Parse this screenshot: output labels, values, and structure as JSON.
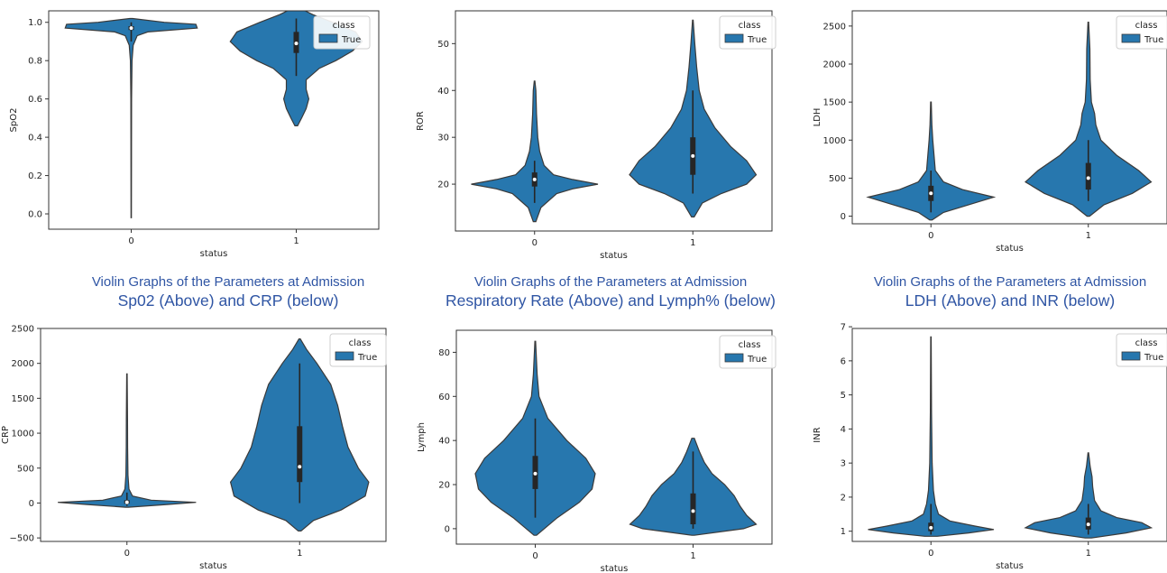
{
  "colors": {
    "violin": "#2777ae",
    "box": "#262626",
    "median": "#ffffff",
    "caption": "#2f55a4"
  },
  "captions": [
    {
      "line1": "Violin Graphs of the Parameters at Admission",
      "line2": "Sp02 (Above) and CRP (below)"
    },
    {
      "line1": "Violin Graphs of the Parameters at Admission",
      "line2": "Respiratory Rate (Above) and Lymph% (below)"
    },
    {
      "line1": "Violin Graphs of the Parameters at Admission",
      "line2": "LDH (Above) and INR (below)"
    }
  ],
  "chart_data": [
    {
      "type": "violin",
      "xlabel": "status",
      "ylabel": "SpO2",
      "categories": [
        "0",
        "1"
      ],
      "ylim": [
        -0.08,
        1.06
      ],
      "yticks": [
        "0.0",
        "0.2",
        "0.4",
        "0.6",
        "0.8",
        "1.0"
      ],
      "legend": {
        "title": "class",
        "entries": [
          "True"
        ],
        "placement": "top-right"
      },
      "series": [
        {
          "name": "True",
          "violins": [
            {
              "category": "0",
              "min": -0.02,
              "max": 1.02,
              "median": 0.97,
              "q1": 0.96,
              "q3": 0.98,
              "whisker_low": 0.9,
              "whisker_high": 1.0,
              "profile": [
                [
                  -0.02,
                  0.003
                ],
                [
                  0.3,
                  0.004
                ],
                [
                  0.6,
                  0.006
                ],
                [
                  0.8,
                  0.012
                ],
                [
                  0.88,
                  0.03
                ],
                [
                  0.93,
                  0.09
                ],
                [
                  0.95,
                  0.25
                ],
                [
                  0.97,
                  1.0
                ],
                [
                  0.99,
                  0.98
                ],
                [
                  1.0,
                  0.5
                ],
                [
                  1.02,
                  0.02
                ]
              ]
            },
            {
              "category": "1",
              "min": 0.46,
              "max": 1.08,
              "median": 0.89,
              "q1": 0.84,
              "q3": 0.95,
              "whisker_low": 0.72,
              "whisker_high": 1.02,
              "profile": [
                [
                  0.46,
                  0.02
                ],
                [
                  0.5,
                  0.08
                ],
                [
                  0.55,
                  0.15
                ],
                [
                  0.6,
                  0.19
                ],
                [
                  0.65,
                  0.15
                ],
                [
                  0.7,
                  0.15
                ],
                [
                  0.76,
                  0.35
                ],
                [
                  0.8,
                  0.6
                ],
                [
                  0.85,
                  0.85
                ],
                [
                  0.9,
                  1.0
                ],
                [
                  0.95,
                  0.9
                ],
                [
                  1.0,
                  0.55
                ],
                [
                  1.04,
                  0.25
                ],
                [
                  1.08,
                  0.02
                ]
              ]
            }
          ]
        }
      ]
    },
    {
      "type": "violin",
      "xlabel": "status",
      "ylabel": "ROR",
      "categories": [
        "0",
        "1"
      ],
      "ylim": [
        10,
        57
      ],
      "yticks": [
        "20",
        "30",
        "40",
        "50"
      ],
      "legend": {
        "title": "class",
        "entries": [
          "True"
        ],
        "placement": "top-right"
      },
      "series": [
        {
          "name": "True",
          "violins": [
            {
              "category": "0",
              "min": 12,
              "max": 42,
              "median": 21,
              "q1": 19.5,
              "q3": 22.5,
              "whisker_low": 16,
              "whisker_high": 25,
              "profile": [
                [
                  12,
                  0.02
                ],
                [
                  15,
                  0.1
                ],
                [
                  18,
                  0.35
                ],
                [
                  19,
                  0.6
                ],
                [
                  20,
                  1.0
                ],
                [
                  21,
                  0.6
                ],
                [
                  22,
                  0.3
                ],
                [
                  24,
                  0.15
                ],
                [
                  27,
                  0.08
                ],
                [
                  30,
                  0.05
                ],
                [
                  35,
                  0.03
                ],
                [
                  40,
                  0.02
                ],
                [
                  42,
                  0.005
                ]
              ]
            },
            {
              "category": "1",
              "min": 13,
              "max": 55,
              "median": 26,
              "q1": 22,
              "q3": 30,
              "whisker_low": 18,
              "whisker_high": 40,
              "profile": [
                [
                  13,
                  0.02
                ],
                [
                  16,
                  0.15
                ],
                [
                  18,
                  0.45
                ],
                [
                  20,
                  0.85
                ],
                [
                  22,
                  1.0
                ],
                [
                  25,
                  0.85
                ],
                [
                  28,
                  0.6
                ],
                [
                  32,
                  0.35
                ],
                [
                  36,
                  0.18
                ],
                [
                  40,
                  0.1
                ],
                [
                  45,
                  0.06
                ],
                [
                  50,
                  0.03
                ],
                [
                  55,
                  0.005
                ]
              ]
            }
          ]
        }
      ]
    },
    {
      "type": "violin",
      "xlabel": "status",
      "ylabel": "LDH",
      "categories": [
        "0",
        "1"
      ],
      "ylim": [
        -100,
        2700
      ],
      "yticks": [
        "0",
        "500",
        "1000",
        "1500",
        "2000",
        "2500"
      ],
      "legend": {
        "title": "class",
        "entries": [
          "True"
        ],
        "placement": "top-right"
      },
      "series": [
        {
          "name": "True",
          "violins": [
            {
              "category": "0",
              "min": -50,
              "max": 1500,
              "median": 300,
              "q1": 200,
              "q3": 400,
              "whisker_low": 50,
              "whisker_high": 600,
              "profile": [
                [
                  -50,
                  0.02
                ],
                [
                  50,
                  0.2
                ],
                [
                  150,
                  0.6
                ],
                [
                  250,
                  1.0
                ],
                [
                  350,
                  0.5
                ],
                [
                  450,
                  0.2
                ],
                [
                  600,
                  0.07
                ],
                [
                  800,
                  0.05
                ],
                [
                  1000,
                  0.03
                ],
                [
                  1200,
                  0.015
                ],
                [
                  1500,
                  0.005
                ]
              ]
            },
            {
              "category": "1",
              "min": 0,
              "max": 2550,
              "median": 500,
              "q1": 350,
              "q3": 700,
              "whisker_low": 200,
              "whisker_high": 1000,
              "profile": [
                [
                  0,
                  0.02
                ],
                [
                  150,
                  0.25
                ],
                [
                  300,
                  0.7
                ],
                [
                  450,
                  1.0
                ],
                [
                  600,
                  0.8
                ],
                [
                  800,
                  0.45
                ],
                [
                  1000,
                  0.2
                ],
                [
                  1200,
                  0.12
                ],
                [
                  1350,
                  0.1
                ],
                [
                  1500,
                  0.05
                ],
                [
                  1800,
                  0.03
                ],
                [
                  2200,
                  0.025
                ],
                [
                  2550,
                  0.005
                ]
              ]
            }
          ]
        }
      ]
    },
    {
      "type": "violin",
      "xlabel": "status",
      "ylabel": "CRP",
      "categories": [
        "0",
        "1"
      ],
      "ylim": [
        -550,
        2500
      ],
      "yticks": [
        "−500",
        "0",
        "500",
        "1000",
        "1500",
        "2000",
        "2500"
      ],
      "legend": {
        "title": "class",
        "entries": [
          "True"
        ],
        "placement": "top-right"
      },
      "series": [
        {
          "name": "True",
          "violins": [
            {
              "category": "0",
              "min": -60,
              "max": 1850,
              "median": 10,
              "q1": -10,
              "q3": 40,
              "whisker_low": -40,
              "whisker_high": 150,
              "profile": [
                [
                  -60,
                  0.02
                ],
                [
                  -20,
                  0.6
                ],
                [
                  10,
                  1.0
                ],
                [
                  40,
                  0.35
                ],
                [
                  100,
                  0.08
                ],
                [
                  200,
                  0.03
                ],
                [
                  400,
                  0.015
                ],
                [
                  800,
                  0.01
                ],
                [
                  1200,
                  0.008
                ],
                [
                  1850,
                  0.003
                ]
              ]
            },
            {
              "category": "1",
              "min": -400,
              "max": 2350,
              "median": 520,
              "q1": 300,
              "q3": 1100,
              "whisker_low": 0,
              "whisker_high": 2000,
              "profile": [
                [
                  -400,
                  0.02
                ],
                [
                  -250,
                  0.2
                ],
                [
                  -100,
                  0.6
                ],
                [
                  100,
                  0.95
                ],
                [
                  300,
                  1.0
                ],
                [
                  500,
                  0.85
                ],
                [
                  800,
                  0.7
                ],
                [
                  1100,
                  0.62
                ],
                [
                  1400,
                  0.55
                ],
                [
                  1700,
                  0.45
                ],
                [
                  2000,
                  0.25
                ],
                [
                  2200,
                  0.1
                ],
                [
                  2350,
                  0.01
                ]
              ]
            }
          ]
        }
      ]
    },
    {
      "type": "violin",
      "xlabel": "status",
      "ylabel": "Lymph",
      "categories": [
        "0",
        "1"
      ],
      "ylim": [
        -7,
        90
      ],
      "yticks": [
        "0",
        "20",
        "40",
        "60",
        "80"
      ],
      "legend": {
        "title": "class",
        "entries": [
          "True"
        ],
        "placement": "top-right"
      },
      "series": [
        {
          "name": "True",
          "violins": [
            {
              "category": "0",
              "min": -3,
              "max": 85,
              "median": 25,
              "q1": 18,
              "q3": 33,
              "whisker_low": 5,
              "whisker_high": 50,
              "profile": [
                [
                  -3,
                  0.02
                ],
                [
                  5,
                  0.35
                ],
                [
                  12,
                  0.7
                ],
                [
                  18,
                  0.9
                ],
                [
                  25,
                  0.95
                ],
                [
                  32,
                  0.8
                ],
                [
                  40,
                  0.5
                ],
                [
                  50,
                  0.2
                ],
                [
                  60,
                  0.06
                ],
                [
                  70,
                  0.03
                ],
                [
                  85,
                  0.005
                ]
              ]
            },
            {
              "category": "1",
              "min": -3,
              "max": 41,
              "median": 8,
              "q1": 2,
              "q3": 16,
              "whisker_low": 0,
              "whisker_high": 35,
              "profile": [
                [
                  -3,
                  0.02
                ],
                [
                  0,
                  0.8
                ],
                [
                  2,
                  1.0
                ],
                [
                  6,
                  0.85
                ],
                [
                  10,
                  0.75
                ],
                [
                  15,
                  0.65
                ],
                [
                  20,
                  0.5
                ],
                [
                  25,
                  0.3
                ],
                [
                  30,
                  0.18
                ],
                [
                  35,
                  0.1
                ],
                [
                  41,
                  0.02
                ]
              ]
            }
          ]
        }
      ]
    },
    {
      "type": "violin",
      "xlabel": "status",
      "ylabel": "INR",
      "categories": [
        "0",
        "1"
      ],
      "ylim": [
        0.7,
        6.95
      ],
      "yticks": [
        "1",
        "2",
        "3",
        "4",
        "5",
        "6",
        "7"
      ],
      "legend": {
        "title": "class",
        "entries": [
          "True"
        ],
        "placement": "top-right"
      },
      "series": [
        {
          "name": "True",
          "violins": [
            {
              "category": "0",
              "min": 0.85,
              "max": 6.7,
              "median": 1.1,
              "q1": 1.0,
              "q3": 1.25,
              "whisker_low": 0.9,
              "whisker_high": 1.8,
              "profile": [
                [
                  0.85,
                  0.1
                ],
                [
                  0.95,
                  0.6
                ],
                [
                  1.05,
                  1.0
                ],
                [
                  1.15,
                  0.7
                ],
                [
                  1.3,
                  0.3
                ],
                [
                  1.5,
                  0.12
                ],
                [
                  1.8,
                  0.07
                ],
                [
                  2.2,
                  0.04
                ],
                [
                  3.0,
                  0.02
                ],
                [
                  4.5,
                  0.01
                ],
                [
                  6.7,
                  0.003
                ]
              ]
            },
            {
              "category": "1",
              "min": 0.8,
              "max": 3.3,
              "median": 1.2,
              "q1": 1.05,
              "q3": 1.4,
              "whisker_low": 0.9,
              "whisker_high": 1.8,
              "profile": [
                [
                  0.8,
                  0.05
                ],
                [
                  0.95,
                  0.6
                ],
                [
                  1.1,
                  1.0
                ],
                [
                  1.25,
                  0.85
                ],
                [
                  1.4,
                  0.45
                ],
                [
                  1.6,
                  0.2
                ],
                [
                  1.9,
                  0.1
                ],
                [
                  2.3,
                  0.07
                ],
                [
                  2.6,
                  0.06
                ],
                [
                  2.9,
                  0.03
                ],
                [
                  3.3,
                  0.005
                ]
              ]
            }
          ]
        }
      ]
    }
  ]
}
